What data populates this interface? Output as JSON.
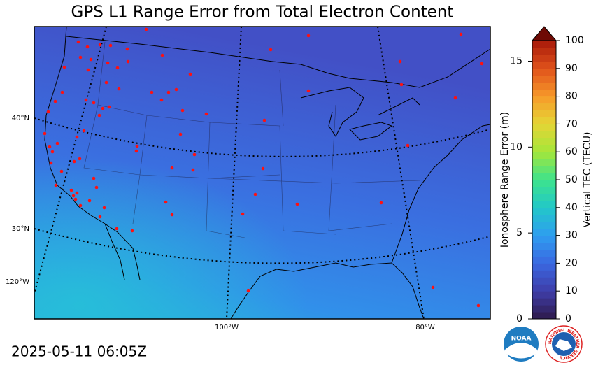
{
  "title": "GPS L1 Range Error from Total Electron Content",
  "timestamp": "2025-05-11 06:05Z",
  "map": {
    "lat_labels": [
      "40°N",
      "30°N",
      "120°W"
    ],
    "lon_labels": [
      "100°W",
      "80°W"
    ]
  },
  "colorbar": {
    "tec_label": "Vertical TEC (TECU)",
    "error_label": "Ionosphere Range Error (m)",
    "tec_lim": [
      0,
      100
    ],
    "tec_ticks": [
      0,
      10,
      20,
      30,
      40,
      50,
      60,
      70,
      80,
      90,
      100
    ],
    "error_lim": [
      0,
      16.2
    ],
    "error_ticks": [
      0,
      5,
      10,
      15
    ],
    "colors": [
      "#2e1a4a",
      "#3f3da8",
      "#3a67e0",
      "#2e9df0",
      "#22c7c9",
      "#3de38c",
      "#a5e63a",
      "#e5d535",
      "#f7992a",
      "#e0531b",
      "#a8190a"
    ],
    "extend_color": "#6e0a05"
  },
  "logos": [
    "NOAA",
    "NATIONAL WEATHER SERVICE"
  ]
}
